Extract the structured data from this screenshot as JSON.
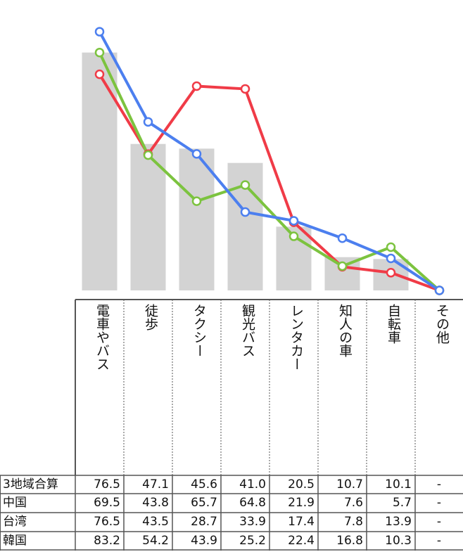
{
  "chart_data": {
    "type": "bar+line",
    "categories": [
      "電車やバス",
      "徒歩",
      "タクシー",
      "観光バス",
      "レンタカー",
      "知人の車",
      "自転車",
      "その他"
    ],
    "bar_series": {
      "name": "3地域合算",
      "color": "#d3d3d3",
      "values": [
        76.5,
        47.1,
        45.6,
        41.0,
        20.5,
        10.7,
        10.1,
        null
      ]
    },
    "line_series": [
      {
        "name": "中国",
        "color": "#f03b47",
        "values": [
          69.5,
          43.8,
          65.7,
          64.8,
          21.9,
          7.6,
          5.7,
          null
        ]
      },
      {
        "name": "台湾",
        "color": "#7cc33f",
        "values": [
          76.5,
          43.5,
          28.7,
          33.9,
          17.4,
          7.8,
          13.9,
          null
        ]
      },
      {
        "name": "韓国",
        "color": "#4c7fef",
        "values": [
          83.2,
          54.2,
          43.9,
          25.2,
          22.4,
          16.8,
          10.3,
          null
        ]
      }
    ],
    "ylim": [
      0,
      90
    ],
    "grid": false,
    "legend": "none",
    "missing_label": "-"
  },
  "table": {
    "rows": [
      {
        "label": "3地域合算",
        "cells": [
          "76.5",
          "47.1",
          "45.6",
          "41.0",
          "20.5",
          "10.7",
          "10.1",
          "-"
        ]
      },
      {
        "label": "中国",
        "cells": [
          "69.5",
          "43.8",
          "65.7",
          "64.8",
          "21.9",
          "7.6",
          "5.7",
          "-"
        ]
      },
      {
        "label": "台湾",
        "cells": [
          "76.5",
          "43.5",
          "28.7",
          "33.9",
          "17.4",
          "7.8",
          "13.9",
          "-"
        ]
      },
      {
        "label": "韓国",
        "cells": [
          "83.2",
          "54.2",
          "43.9",
          "25.2",
          "22.4",
          "16.8",
          "10.3",
          "-"
        ]
      }
    ]
  }
}
